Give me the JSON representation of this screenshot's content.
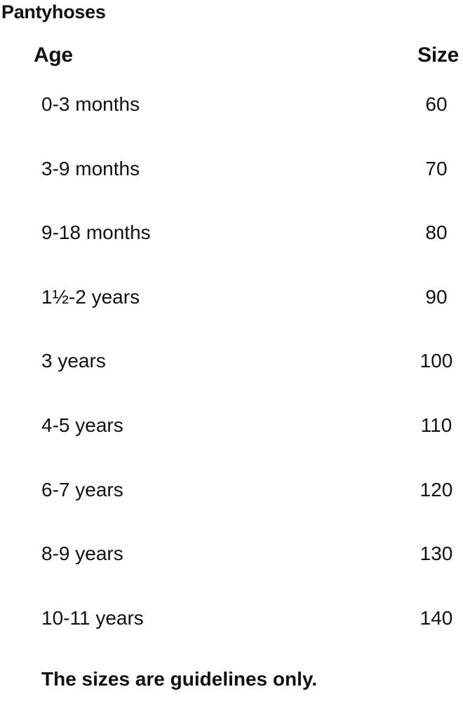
{
  "title": "Pantyhoses",
  "headers": {
    "age": "Age",
    "size": "Size"
  },
  "rows": [
    {
      "age": "0-3 months",
      "size": "60"
    },
    {
      "age": "3-9 months",
      "size": "70"
    },
    {
      "age": "9-18 months",
      "size": "80"
    },
    {
      "age": "1½-2 years",
      "size": "90"
    },
    {
      "age": "3 years",
      "size": "100"
    },
    {
      "age": "4-5 years",
      "size": "110"
    },
    {
      "age": "6-7 years",
      "size": "120"
    },
    {
      "age": "8-9 years",
      "size": "130"
    },
    {
      "age": "10-11 years",
      "size": "140"
    }
  ],
  "footer": "The sizes are guidelines only."
}
